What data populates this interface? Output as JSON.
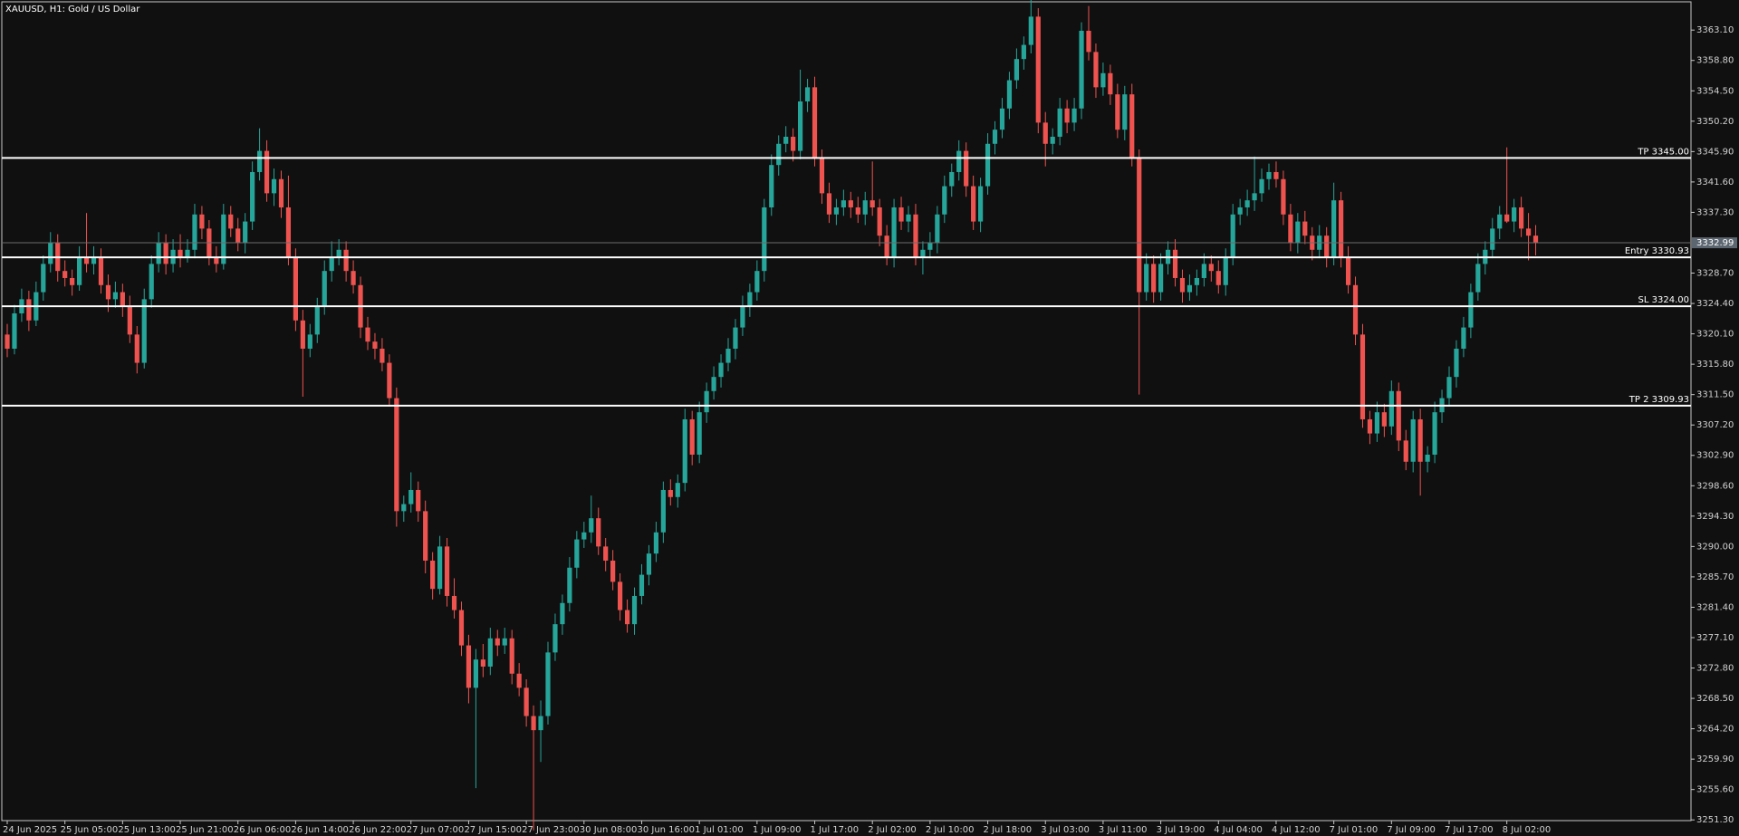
{
  "chart_data": {
    "type": "candlestick",
    "title": "XAUUSD, H1:  Gold / US Dollar",
    "up_color": "#26a69a",
    "down_color": "#ef5350",
    "ylim": [
      3251.2,
      3367.1
    ],
    "yticks": [
      {
        "value": 3363.1,
        "label": "3363.10"
      },
      {
        "value": 3358.8,
        "label": "3358.80"
      },
      {
        "value": 3354.5,
        "label": "3354.50"
      },
      {
        "value": 3350.2,
        "label": "3350.20"
      },
      {
        "value": 3345.9,
        "label": "3345.90"
      },
      {
        "value": 3341.6,
        "label": "3341.60"
      },
      {
        "value": 3337.3,
        "label": "3337.30"
      },
      {
        "value": 3328.7,
        "label": "3328.70"
      },
      {
        "value": 3324.4,
        "label": "3324.40"
      },
      {
        "value": 3320.1,
        "label": "3320.10"
      },
      {
        "value": 3315.8,
        "label": "3315.80"
      },
      {
        "value": 3311.5,
        "label": "3311.50"
      },
      {
        "value": 3307.2,
        "label": "3307.20"
      },
      {
        "value": 3302.9,
        "label": "3302.90"
      },
      {
        "value": 3298.6,
        "label": "3298.60"
      },
      {
        "value": 3294.3,
        "label": "3294.30"
      },
      {
        "value": 3290,
        "label": "3290.00"
      },
      {
        "value": 3285.7,
        "label": "3285.70"
      },
      {
        "value": 3281.4,
        "label": "3281.40"
      },
      {
        "value": 3277.1,
        "label": "3277.10"
      },
      {
        "value": 3272.8,
        "label": "3272.80"
      },
      {
        "value": 3268.5,
        "label": "3268.50"
      },
      {
        "value": 3264.2,
        "label": "3264.20"
      },
      {
        "value": 3259.9,
        "label": "3259.90"
      },
      {
        "value": 3255.6,
        "label": "3255.60"
      },
      {
        "value": 3251.3,
        "label": "3251.30"
      }
    ],
    "current_price": 3332.99,
    "levels": [
      {
        "label": "TP 3345.00",
        "value": 3345
      },
      {
        "label": "Entry 3330.93",
        "value": 3330.93
      },
      {
        "label": "SL 3324.00",
        "value": 3324
      },
      {
        "label": "TP 2 3309.93",
        "value": 3309.93
      }
    ],
    "x_labels": [
      "24 Jun 2025",
      "25 Jun 05:00",
      "25 Jun 13:00",
      "25 Jun 21:00",
      "26 Jun 06:00",
      "26 Jun 14:00",
      "26 Jun 22:00",
      "27 Jun 07:00",
      "27 Jun 15:00",
      "27 Jun 23:00",
      "30 Jun 08:00",
      "30 Jun 16:00",
      "1 Jul 01:00",
      "1 Jul 09:00",
      "1 Jul 17:00",
      "2 Jul 02:00",
      "2 Jul 10:00",
      "2 Jul 18:00",
      "3 Jul 03:00",
      "3 Jul 11:00",
      "3 Jul 19:00",
      "4 Jul 04:00",
      "4 Jul 12:00",
      "7 Jul 01:00",
      "7 Jul 09:00",
      "7 Jul 17:00",
      "8 Jul 02:00"
    ],
    "candles": [
      [
        3320,
        3321.5,
        3316.8,
        3318
      ],
      [
        3318,
        3324.2,
        3317.2,
        3323
      ],
      [
        3323,
        3326.5,
        3321.8,
        3325
      ],
      [
        3325,
        3326.2,
        3320.5,
        3322
      ],
      [
        3322,
        3327.5,
        3321.2,
        3326
      ],
      [
        3326,
        3331.2,
        3324.8,
        3330
      ],
      [
        3330,
        3334.5,
        3328.8,
        3333
      ],
      [
        3333,
        3334.2,
        3327.5,
        3329
      ],
      [
        3329,
        3330.5,
        3326.8,
        3328
      ],
      [
        3328,
        3329.2,
        3325.5,
        3327
      ],
      [
        3327,
        3332.5,
        3326.2,
        3331
      ],
      [
        3331,
        3337.2,
        3328.8,
        3330
      ],
      [
        3330,
        3332.5,
        3328.5,
        3331
      ],
      [
        3331,
        3332.2,
        3325.8,
        3327
      ],
      [
        3327,
        3328.5,
        3323.2,
        3325
      ],
      [
        3325,
        3327.5,
        3323.8,
        3326
      ],
      [
        3326,
        3327.2,
        3322.5,
        3324
      ],
      [
        3324,
        3325.5,
        3318.8,
        3320
      ],
      [
        3320,
        3321.2,
        3314.5,
        3316
      ],
      [
        3316,
        3326.5,
        3315.2,
        3325
      ],
      [
        3325,
        3331.2,
        3323.8,
        3330
      ],
      [
        3330,
        3334.5,
        3328.8,
        3333
      ],
      [
        3333,
        3334.2,
        3328.5,
        3330
      ],
      [
        3330,
        3333.5,
        3328.8,
        3332
      ],
      [
        3332,
        3334.2,
        3329.5,
        3331
      ],
      [
        3331,
        3333.5,
        3330.2,
        3332
      ],
      [
        3332,
        3338.5,
        3330.8,
        3337
      ],
      [
        3337,
        3338.2,
        3333.5,
        3335
      ],
      [
        3335,
        3336.2,
        3329.8,
        3331
      ],
      [
        3331,
        3332.5,
        3328.8,
        3330
      ],
      [
        3330,
        3338.5,
        3329.2,
        3337
      ],
      [
        3337,
        3338.2,
        3333.8,
        3335
      ],
      [
        3335,
        3336.5,
        3331.8,
        3333
      ],
      [
        3333,
        3337.2,
        3331.5,
        3336
      ],
      [
        3336,
        3344.5,
        3334.8,
        3343
      ],
      [
        3343,
        3349.2,
        3341.8,
        3346
      ],
      [
        3346,
        3347.5,
        3338.8,
        3340
      ],
      [
        3340,
        3343.5,
        3338.2,
        3342
      ],
      [
        3342,
        3343.2,
        3336.5,
        3338
      ],
      [
        3338,
        3342.5,
        3329.8,
        3331
      ],
      [
        3331,
        3332.2,
        3320.5,
        3322
      ],
      [
        3322,
        3323.5,
        3311.2,
        3318
      ],
      [
        3318,
        3321.5,
        3316.8,
        3320
      ],
      [
        3320,
        3325.2,
        3318.8,
        3324
      ],
      [
        3324,
        3330.5,
        3322.8,
        3329
      ],
      [
        3329,
        3333.2,
        3327.5,
        3331
      ],
      [
        3331,
        3333.5,
        3329.8,
        3332
      ],
      [
        3332,
        3333.2,
        3327.5,
        3329
      ],
      [
        3329,
        3330.5,
        3325.8,
        3327
      ],
      [
        3327,
        3328.2,
        3319.5,
        3321
      ],
      [
        3321,
        3322.5,
        3317.8,
        3319
      ],
      [
        3319,
        3320.2,
        3316.5,
        3318
      ],
      [
        3318,
        3319.5,
        3314.8,
        3316
      ],
      [
        3316,
        3317.2,
        3309.8,
        3311
      ],
      [
        3311,
        3312.5,
        3292.8,
        3295
      ],
      [
        3295,
        3297.2,
        3293.5,
        3296
      ],
      [
        3296,
        3300.5,
        3294.8,
        3298
      ],
      [
        3298,
        3299.2,
        3293.5,
        3295
      ],
      [
        3295,
        3296.5,
        3286.2,
        3288
      ],
      [
        3288,
        3289.2,
        3282.5,
        3284
      ],
      [
        3284,
        3291.5,
        3283.2,
        3290
      ],
      [
        3290,
        3291.2,
        3281.5,
        3283
      ],
      [
        3283,
        3285.5,
        3279.8,
        3281
      ],
      [
        3281,
        3282.2,
        3274.5,
        3276
      ],
      [
        3276,
        3277.5,
        3267.8,
        3270
      ],
      [
        3270,
        3275.5,
        3255.8,
        3274
      ],
      [
        3274,
        3276.2,
        3271.5,
        3273
      ],
      [
        3273,
        3278.5,
        3271.8,
        3277
      ],
      [
        3277,
        3278.2,
        3274.5,
        3276
      ],
      [
        3276,
        3278.5,
        3274.8,
        3277
      ],
      [
        3277,
        3278.2,
        3270.5,
        3272
      ],
      [
        3272,
        3273.5,
        3268.8,
        3270
      ],
      [
        3270,
        3271.2,
        3264.5,
        3266
      ],
      [
        3266,
        3267.5,
        3249.8,
        3264
      ],
      [
        3264,
        3268.2,
        3259.5,
        3266
      ],
      [
        3266,
        3276.5,
        3264.8,
        3275
      ],
      [
        3275,
        3280.5,
        3273.8,
        3279
      ],
      [
        3279,
        3283.2,
        3277.5,
        3282
      ],
      [
        3282,
        3288.5,
        3280.8,
        3287
      ],
      [
        3287,
        3292.2,
        3285.5,
        3291
      ],
      [
        3291,
        3293.5,
        3289.8,
        3292
      ],
      [
        3292,
        3297.2,
        3290.5,
        3294
      ],
      [
        3294,
        3295.5,
        3288.8,
        3290
      ],
      [
        3290,
        3291.2,
        3286.5,
        3288
      ],
      [
        3288,
        3289.5,
        3283.8,
        3285
      ],
      [
        3285,
        3286.2,
        3279.5,
        3281
      ],
      [
        3281,
        3282.5,
        3277.8,
        3279
      ],
      [
        3279,
        3284.2,
        3277.5,
        3283
      ],
      [
        3283,
        3287.5,
        3281.8,
        3286
      ],
      [
        3286,
        3290.2,
        3284.5,
        3289
      ],
      [
        3289,
        3293.5,
        3287.8,
        3292
      ],
      [
        3292,
        3299.2,
        3290.5,
        3298
      ],
      [
        3298,
        3299.5,
        3295.8,
        3297
      ],
      [
        3297,
        3300.2,
        3295.5,
        3299
      ],
      [
        3299,
        3309.5,
        3297.8,
        3308
      ],
      [
        3308,
        3309.2,
        3301.5,
        3303
      ],
      [
        3303,
        3310.5,
        3301.8,
        3309
      ],
      [
        3309,
        3313.2,
        3307.5,
        3312
      ],
      [
        3312,
        3315.5,
        3310.8,
        3314
      ],
      [
        3314,
        3317.2,
        3312.5,
        3316
      ],
      [
        3316,
        3319.5,
        3314.8,
        3318
      ],
      [
        3318,
        3322.2,
        3316.5,
        3321
      ],
      [
        3321,
        3325.5,
        3319.8,
        3324
      ],
      [
        3324,
        3327.2,
        3322.5,
        3326
      ],
      [
        3326,
        3330.5,
        3324.8,
        3329
      ],
      [
        3329,
        3339.2,
        3327.5,
        3338
      ],
      [
        3338,
        3345.5,
        3336.8,
        3344
      ],
      [
        3344,
        3348.2,
        3342.5,
        3347
      ],
      [
        3347,
        3349.5,
        3345.8,
        3348
      ],
      [
        3348,
        3349.2,
        3344.5,
        3346
      ],
      [
        3346,
        3357.5,
        3344.8,
        3353
      ],
      [
        3353,
        3356.2,
        3351.5,
        3355
      ],
      [
        3355,
        3356.5,
        3343.8,
        3345
      ],
      [
        3345,
        3346.2,
        3338.5,
        3340
      ],
      [
        3340,
        3341.5,
        3335.8,
        3337
      ],
      [
        3337,
        3339.2,
        3335.5,
        3338
      ],
      [
        3338,
        3340.5,
        3336.8,
        3339
      ],
      [
        3339,
        3340.2,
        3336.5,
        3338
      ],
      [
        3338,
        3339.5,
        3335.8,
        3337
      ],
      [
        3337,
        3340.2,
        3335.5,
        3339
      ],
      [
        3339,
        3344.5,
        3336.8,
        3338
      ],
      [
        3338,
        3339.2,
        3332.5,
        3334
      ],
      [
        3334,
        3335.5,
        3329.8,
        3331
      ],
      [
        3331,
        3339.2,
        3329.5,
        3338
      ],
      [
        3338,
        3339.5,
        3334.8,
        3336
      ],
      [
        3336,
        3338.2,
        3334.5,
        3337
      ],
      [
        3337,
        3338.5,
        3329.8,
        3331
      ],
      [
        3331,
        3333.2,
        3328.5,
        3332
      ],
      [
        3332,
        3334.5,
        3330.8,
        3333
      ],
      [
        3333,
        3338.2,
        3331.5,
        3337
      ],
      [
        3337,
        3342.5,
        3335.8,
        3341
      ],
      [
        3341,
        3344.2,
        3339.5,
        3343
      ],
      [
        3343,
        3347.5,
        3341.8,
        3346
      ],
      [
        3346,
        3347.2,
        3339.5,
        3341
      ],
      [
        3341,
        3342.5,
        3334.8,
        3336
      ],
      [
        3336,
        3342.2,
        3334.5,
        3341
      ],
      [
        3341,
        3348.5,
        3339.8,
        3347
      ],
      [
        3347,
        3350.2,
        3345.5,
        3349
      ],
      [
        3349,
        3353.5,
        3347.8,
        3352
      ],
      [
        3352,
        3357.2,
        3350.5,
        3356
      ],
      [
        3356,
        3360.5,
        3354.8,
        3359
      ],
      [
        3359,
        3362.2,
        3357.5,
        3361
      ],
      [
        3361,
        3368.5,
        3359.8,
        3365
      ],
      [
        3365,
        3366.2,
        3348.5,
        3350
      ],
      [
        3350,
        3351.5,
        3343.8,
        3347
      ],
      [
        3347,
        3349.2,
        3345.5,
        3348
      ],
      [
        3348,
        3353.5,
        3346.8,
        3352
      ],
      [
        3352,
        3353.2,
        3348.5,
        3350
      ],
      [
        3350,
        3353.5,
        3348.8,
        3352
      ],
      [
        3352,
        3364.2,
        3350.5,
        3363
      ],
      [
        3363,
        3366.5,
        3358.8,
        3360
      ],
      [
        3360,
        3361.2,
        3353.5,
        3355
      ],
      [
        3355,
        3358.5,
        3353.8,
        3357
      ],
      [
        3357,
        3358.2,
        3352.5,
        3354
      ],
      [
        3354,
        3355.5,
        3347.8,
        3349
      ],
      [
        3349,
        3355.2,
        3347.5,
        3354
      ],
      [
        3354,
        3355.5,
        3343.8,
        3345
      ],
      [
        3345,
        3346.2,
        3311.5,
        3326
      ],
      [
        3326,
        3331.5,
        3324.8,
        3330
      ],
      [
        3330,
        3331.2,
        3324.5,
        3326
      ],
      [
        3326,
        3331.5,
        3324.8,
        3330
      ],
      [
        3330,
        3333.2,
        3328.5,
        3332
      ],
      [
        3332,
        3333.5,
        3326.8,
        3328
      ],
      [
        3328,
        3329.2,
        3324.5,
        3326
      ],
      [
        3326,
        3328.5,
        3324.8,
        3327
      ],
      [
        3327,
        3329.2,
        3325.5,
        3328
      ],
      [
        3328,
        3331.5,
        3326.8,
        3330
      ],
      [
        3330,
        3331.2,
        3327.5,
        3329
      ],
      [
        3329,
        3330.5,
        3325.8,
        3327
      ],
      [
        3327,
        3332.2,
        3325.5,
        3331
      ],
      [
        3331,
        3338.5,
        3329.8,
        3337
      ],
      [
        3337,
        3339.2,
        3335.5,
        3338
      ],
      [
        3338,
        3340.5,
        3336.8,
        3339
      ],
      [
        3339,
        3345.2,
        3337.5,
        3340
      ],
      [
        3340,
        3343.5,
        3338.8,
        3342
      ],
      [
        3342,
        3344.2,
        3340.5,
        3343
      ],
      [
        3343,
        3344.5,
        3340.8,
        3342
      ],
      [
        3342,
        3343.2,
        3335.5,
        3337
      ],
      [
        3337,
        3338.5,
        3331.8,
        3333
      ],
      [
        3333,
        3337.2,
        3331.5,
        3336
      ],
      [
        3336,
        3337.5,
        3332.8,
        3334
      ],
      [
        3334,
        3335.2,
        3330.5,
        3332
      ],
      [
        3332,
        3335.5,
        3330.8,
        3334
      ],
      [
        3334,
        3335.2,
        3329.5,
        3331
      ],
      [
        3331,
        3341.5,
        3329.8,
        3339
      ],
      [
        3339,
        3340.2,
        3329.5,
        3331
      ],
      [
        3331,
        3332.5,
        3325.8,
        3327
      ],
      [
        3327,
        3328.2,
        3318.5,
        3320
      ],
      [
        3320,
        3321.5,
        3306.8,
        3308
      ],
      [
        3308,
        3309.2,
        3304.5,
        3306
      ],
      [
        3306,
        3310.5,
        3304.8,
        3309
      ],
      [
        3309,
        3310.2,
        3305.5,
        3307
      ],
      [
        3307,
        3313.5,
        3305.8,
        3312
      ],
      [
        3312,
        3313.2,
        3303.5,
        3305
      ],
      [
        3305,
        3306.5,
        3300.8,
        3302
      ],
      [
        3302,
        3309.2,
        3300.5,
        3308
      ],
      [
        3308,
        3309.5,
        3297.2,
        3302
      ],
      [
        3302,
        3304.2,
        3300.5,
        3303
      ],
      [
        3303,
        3310.5,
        3301.8,
        3309
      ],
      [
        3309,
        3312.2,
        3307.5,
        3311
      ],
      [
        3311,
        3315.5,
        3309.8,
        3314
      ],
      [
        3314,
        3319.2,
        3312.5,
        3318
      ],
      [
        3318,
        3322.5,
        3316.8,
        3321
      ],
      [
        3321,
        3327.2,
        3319.5,
        3326
      ],
      [
        3326,
        3331.5,
        3324.8,
        3330
      ],
      [
        3330,
        3333.2,
        3328.5,
        3332
      ],
      [
        3332,
        3336.5,
        3330.8,
        3335
      ],
      [
        3335,
        3338.2,
        3333.5,
        3337
      ],
      [
        3337,
        3346.5,
        3335.8,
        3336
      ],
      [
        3336,
        3339.2,
        3334.5,
        3338
      ],
      [
        3338,
        3339.5,
        3333.8,
        3335
      ],
      [
        3335,
        3337.2,
        3330.5,
        3334
      ],
      [
        3334,
        3335.5,
        3331.2,
        3332.99
      ]
    ]
  }
}
